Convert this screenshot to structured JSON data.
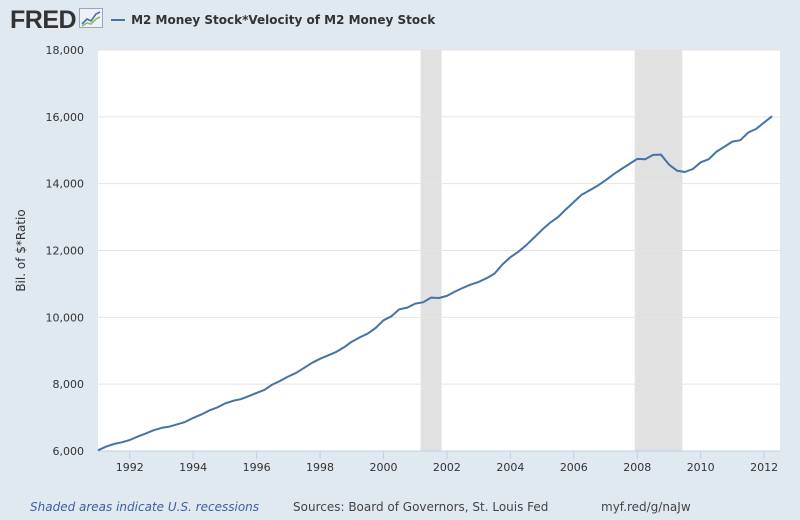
{
  "header": {
    "logo_text": "FRED"
  },
  "colors": {
    "series": "#4572a7",
    "recession": "#e1e1e1",
    "plot_bg": "#ffffff",
    "page_bg": "#e1e9f0",
    "gridline": "#e4e4e4"
  },
  "chart_data": {
    "type": "line",
    "ylabel": "Bil. of $*Ratio",
    "ylim": [
      6000,
      18000
    ],
    "yticks": [
      "6,000",
      "8,000",
      "10,000",
      "12,000",
      "14,000",
      "16,000",
      "18,000"
    ],
    "xlim": [
      1991.0,
      2012.5
    ],
    "xticks": [
      "1992",
      "1994",
      "1996",
      "1998",
      "2000",
      "2002",
      "2004",
      "2006",
      "2008",
      "2010",
      "2012"
    ],
    "grid": true,
    "legend_position": "top",
    "recessions": [
      {
        "start": 2001.17,
        "end": 2001.83
      },
      {
        "start": 2007.92,
        "end": 2009.42
      }
    ],
    "series": [
      {
        "name": "M2 Money Stock*Velocity of M2 Money Stock",
        "x": [
          1991.0,
          1991.25,
          1991.5,
          1991.75,
          1992.0,
          1992.25,
          1992.5,
          1992.75,
          1993.0,
          1993.25,
          1993.5,
          1993.75,
          1994.0,
          1994.25,
          1994.5,
          1994.75,
          1995.0,
          1995.25,
          1995.5,
          1995.75,
          1996.0,
          1996.25,
          1996.5,
          1996.75,
          1997.0,
          1997.25,
          1997.5,
          1997.75,
          1998.0,
          1998.25,
          1998.5,
          1998.75,
          1999.0,
          1999.25,
          1999.5,
          1999.75,
          2000.0,
          2000.25,
          2000.5,
          2000.75,
          2001.0,
          2001.25,
          2001.5,
          2001.75,
          2002.0,
          2002.25,
          2002.5,
          2002.75,
          2003.0,
          2003.25,
          2003.5,
          2003.75,
          2004.0,
          2004.25,
          2004.5,
          2004.75,
          2005.0,
          2005.25,
          2005.5,
          2005.75,
          2006.0,
          2006.25,
          2006.5,
          2006.75,
          2007.0,
          2007.25,
          2007.5,
          2007.75,
          2008.0,
          2008.25,
          2008.5,
          2008.75,
          2009.0,
          2009.25,
          2009.5,
          2009.75,
          2010.0,
          2010.25,
          2010.5,
          2010.75,
          2011.0,
          2011.25,
          2011.5,
          2011.75,
          2012.0,
          2012.25
        ],
        "values": [
          6020,
          6130,
          6210,
          6260,
          6330,
          6430,
          6520,
          6620,
          6690,
          6730,
          6800,
          6870,
          6990,
          7090,
          7210,
          7300,
          7420,
          7500,
          7550,
          7640,
          7740,
          7830,
          7990,
          8100,
          8230,
          8340,
          8490,
          8640,
          8760,
          8860,
          8960,
          9100,
          9270,
          9400,
          9510,
          9680,
          9910,
          10030,
          10240,
          10290,
          10410,
          10450,
          10590,
          10580,
          10640,
          10770,
          10880,
          10980,
          11060,
          11170,
          11310,
          11580,
          11800,
          11960,
          12160,
          12390,
          12620,
          12830,
          13000,
          13230,
          13450,
          13670,
          13800,
          13940,
          14100,
          14280,
          14440,
          14590,
          14740,
          14730,
          14860,
          14870,
          14570,
          14390,
          14350,
          14440,
          14640,
          14730,
          14960,
          15110,
          15260,
          15300,
          15530,
          15640,
          15830,
          16020
        ]
      }
    ]
  },
  "footer": {
    "recession_note": "Shaded areas indicate U.S. recessions",
    "sources": "Sources: Board of Governors, St. Louis Fed",
    "url": "myf.red/g/naJw"
  }
}
